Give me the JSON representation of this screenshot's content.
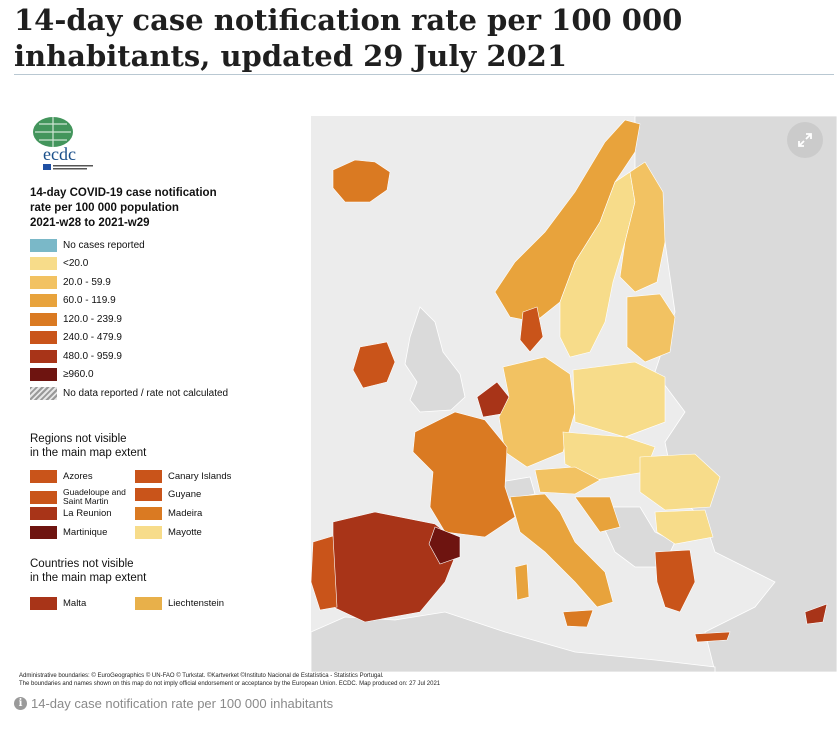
{
  "page": {
    "title": "14-day case notification rate per 100 000 inhabitants, updated 29 July 2021",
    "caption": "14-day case notification rate per 100 000 inhabitants",
    "caption_icon": "info-icon",
    "expand_icon": "expand-icon"
  },
  "map": {
    "logo_text": "ecdc",
    "logo_subtitle": "EUROPEAN CENTRE FOR DISEASE PREVENTION AND CONTROL",
    "legend_title": [
      "14-day COVID-19 case notification",
      "rate per 100 000 population",
      "2021-w28 to 2021-w29"
    ],
    "legend": [
      {
        "label": "No cases reported",
        "color": "#7ab8c8"
      },
      {
        "label": "<20.0",
        "color": "#f7dc8a"
      },
      {
        "label": "20.0 - 59.9",
        "color": "#f2c262"
      },
      {
        "label": "60.0 - 119.9",
        "color": "#e8a33c"
      },
      {
        "label": "120.0 - 239.9",
        "color": "#da7a22"
      },
      {
        "label": "240.0 - 479.9",
        "color": "#c9541a"
      },
      {
        "label": "480.0 - 959.9",
        "color": "#a83418"
      },
      {
        "label": "≥960.0",
        "color": "#6e1410"
      },
      {
        "label": "No data reported / rate not calculated",
        "color": "hatch"
      }
    ],
    "regions_title": [
      "Regions not visible",
      "in the main map extent"
    ],
    "regions": [
      {
        "label": "Azores",
        "color": "#c9541a"
      },
      {
        "label": "Canary Islands",
        "color": "#c9541a"
      },
      {
        "label": "Guadeloupe and Saint Martin",
        "color": "#c9541a"
      },
      {
        "label": "Guyane",
        "color": "#c9541a"
      },
      {
        "label": "La Reunion",
        "color": "#a83418"
      },
      {
        "label": "Madeira",
        "color": "#da7a22"
      },
      {
        "label": "Martinique",
        "color": "#6e1410"
      },
      {
        "label": "Mayotte",
        "color": "#f7dc8a"
      }
    ],
    "countries_title": [
      "Countries not visible",
      "in the main map extent"
    ],
    "countries": [
      {
        "label": "Malta",
        "color": "#a83418"
      },
      {
        "label": "Liechtenstein",
        "color": "#e8b04a"
      }
    ],
    "attribution": [
      "Administrative boundaries: © EuroGeographics © UN-FAO © Turkstat. ©Kartverket ©Instituto Nacional de Estatística - Statistics Portugal.",
      "The boundaries and names shown on this map do not imply official endorsement or acceptance by the European Union. ECDC. Map produced on: 27 Jul 2021"
    ]
  }
}
